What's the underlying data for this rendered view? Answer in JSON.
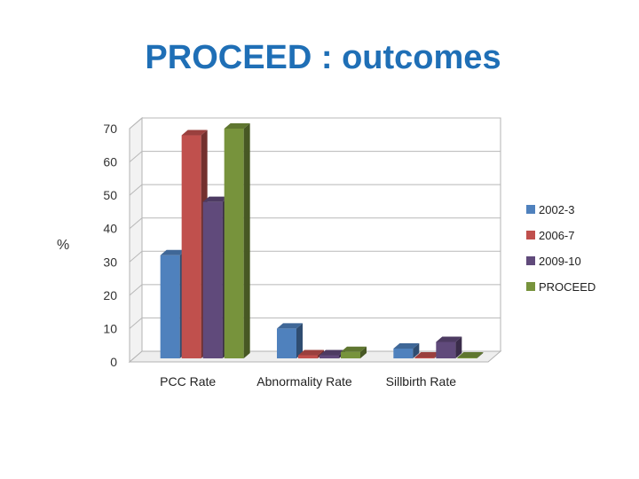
{
  "slide": {
    "title": "PROCEED : outcomes"
  },
  "chart_data": {
    "type": "bar",
    "style": "3d-clustered-column",
    "title": "",
    "xlabel": "",
    "ylabel": "%",
    "ylim": [
      0,
      70
    ],
    "yticks": [
      0,
      10,
      20,
      30,
      40,
      50,
      60,
      70
    ],
    "grid": true,
    "legend_position": "right",
    "categories": [
      "PCC Rate",
      "Abnormality Rate",
      "Sillbirth Rate"
    ],
    "series": [
      {
        "name": "2002-3",
        "color": "#4f81bd",
        "values": [
          32,
          10,
          4
        ]
      },
      {
        "name": "2006-7",
        "color": "#c0504d",
        "values": [
          68,
          2,
          0.5
        ]
      },
      {
        "name": "2009-10",
        "color": "#604a7b",
        "values": [
          48,
          2,
          6
        ]
      },
      {
        "name": "PROCEED",
        "color": "#77933c",
        "values": [
          70,
          3,
          0.2
        ]
      }
    ]
  }
}
